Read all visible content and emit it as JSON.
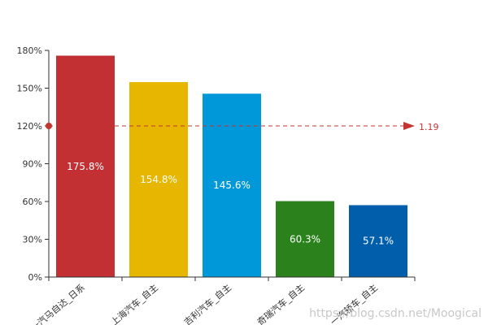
{
  "chart_data": {
    "type": "bar",
    "categories": [
      "一汽马自达_日系",
      "上海汽车_自主",
      "吉利汽车_自主",
      "奇瑞汽车_自主",
      "一汽轿车_自主"
    ],
    "values": [
      175.8,
      154.8,
      145.6,
      60.3,
      57.1
    ],
    "data_labels": [
      "175.8%",
      "154.8%",
      "145.6%",
      "60.3%",
      "57.1%"
    ],
    "colors": [
      "#c23034",
      "#e6b600",
      "#0098d9",
      "#2b821d",
      "#005eaa"
    ],
    "y_ticks": [
      "0%",
      "30%",
      "60%",
      "90%",
      "120%",
      "150%",
      "180%"
    ],
    "ylim": [
      0,
      180
    ],
    "reference_line": {
      "value": 120,
      "label": "1.19",
      "color": "#c23531"
    },
    "title": "",
    "xlabel": "",
    "ylabel": "",
    "grid": false
  },
  "watermark": "https://blog.csdn.net/Moogical"
}
